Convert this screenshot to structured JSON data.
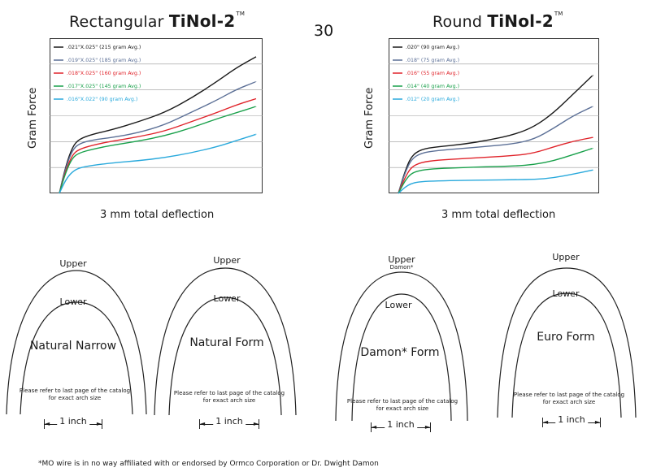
{
  "page_number": "30",
  "charts": [
    {
      "title_plain": "Rectangular",
      "title_brand": "TiNol-2",
      "title_tm": "TM",
      "ylabel": "Gram Force",
      "xlabel": "3 mm total deflection"
    },
    {
      "title_plain": "Round",
      "title_brand": "TiNol-2",
      "title_tm": "TM",
      "ylabel": "Gram Force",
      "xlabel": "3 mm total deflection"
    }
  ],
  "chart_data": [
    {
      "type": "line",
      "title": "Rectangular TiNol-2™",
      "ylabel": "Gram Force",
      "xlabel": "3 mm total deflection",
      "xlim": [
        0,
        3
      ],
      "grid": true,
      "legend_position": "top-left",
      "series": [
        {
          "name": ".021\"X.025\" (215 gram Avg.)",
          "color": "#1a1a1a",
          "x": [
            0,
            0.1,
            0.2,
            0.3,
            0.5,
            0.8,
            1.2,
            1.6,
            2.0,
            2.4,
            2.7,
            3.0
          ],
          "y": [
            0,
            0.9,
            1.5,
            1.75,
            1.9,
            2.05,
            2.3,
            2.6,
            3.05,
            3.6,
            4.05,
            4.4
          ]
        },
        {
          "name": ".019\"X.025\" (185 gram Avg.)",
          "color": "#5b6f96",
          "x": [
            0,
            0.1,
            0.2,
            0.3,
            0.5,
            0.8,
            1.2,
            1.6,
            2.0,
            2.4,
            2.7,
            3.0
          ],
          "y": [
            0,
            0.85,
            1.4,
            1.6,
            1.72,
            1.8,
            1.95,
            2.2,
            2.6,
            3.0,
            3.35,
            3.6
          ]
        },
        {
          "name": ".018\"X.025\" (160 gram Avg.)",
          "color": "#e0232a",
          "x": [
            0,
            0.1,
            0.2,
            0.3,
            0.5,
            0.8,
            1.2,
            1.6,
            2.0,
            2.4,
            2.7,
            3.0
          ],
          "y": [
            0,
            0.75,
            1.25,
            1.42,
            1.55,
            1.68,
            1.82,
            2.0,
            2.3,
            2.6,
            2.85,
            3.05
          ]
        },
        {
          "name": ".017\"X.025\" (145 gram Avg.)",
          "color": "#18a04a",
          "x": [
            0,
            0.1,
            0.2,
            0.3,
            0.5,
            0.8,
            1.2,
            1.6,
            2.0,
            2.4,
            2.7,
            3.0
          ],
          "y": [
            0,
            0.7,
            1.15,
            1.3,
            1.42,
            1.55,
            1.68,
            1.85,
            2.1,
            2.4,
            2.6,
            2.8
          ]
        },
        {
          "name": ".016\"X.022\" (90 gram Avg.)",
          "color": "#29a9dc",
          "x": [
            0,
            0.1,
            0.2,
            0.3,
            0.5,
            0.8,
            1.2,
            1.6,
            2.0,
            2.4,
            2.7,
            3.0
          ],
          "y": [
            0,
            0.45,
            0.7,
            0.82,
            0.9,
            0.98,
            1.05,
            1.15,
            1.3,
            1.5,
            1.7,
            1.9
          ]
        }
      ]
    },
    {
      "type": "line",
      "title": "Round TiNol-2™",
      "ylabel": "Gram Force",
      "xlabel": "3 mm total deflection",
      "xlim": [
        0,
        3
      ],
      "grid": true,
      "legend_position": "top-left",
      "series": [
        {
          "name": ".020\" (90 gram Avg.)",
          "color": "#1a1a1a",
          "x": [
            0,
            0.1,
            0.2,
            0.35,
            0.6,
            1.0,
            1.4,
            1.8,
            2.1,
            2.4,
            2.7,
            3.0
          ],
          "y": [
            0,
            0.7,
            1.2,
            1.42,
            1.5,
            1.58,
            1.72,
            1.9,
            2.15,
            2.6,
            3.2,
            3.8
          ]
        },
        {
          "name": ".018\" (75 gram Avg.)",
          "color": "#5b6f96",
          "x": [
            0,
            0.1,
            0.2,
            0.35,
            0.6,
            1.0,
            1.4,
            1.8,
            2.1,
            2.4,
            2.7,
            3.0
          ],
          "y": [
            0,
            0.65,
            1.1,
            1.3,
            1.38,
            1.45,
            1.52,
            1.6,
            1.75,
            2.1,
            2.5,
            2.8
          ]
        },
        {
          "name": ".016\" (55 gram Avg.)",
          "color": "#e0232a",
          "x": [
            0,
            0.1,
            0.2,
            0.35,
            0.6,
            1.0,
            1.4,
            1.8,
            2.1,
            2.4,
            2.7,
            3.0
          ],
          "y": [
            0,
            0.5,
            0.85,
            1.0,
            1.07,
            1.12,
            1.17,
            1.22,
            1.3,
            1.5,
            1.68,
            1.8
          ]
        },
        {
          "name": ".014\" (40 gram Avg.)",
          "color": "#18a04a",
          "x": [
            0,
            0.1,
            0.2,
            0.35,
            0.6,
            1.0,
            1.4,
            1.8,
            2.1,
            2.4,
            2.7,
            3.0
          ],
          "y": [
            0,
            0.4,
            0.65,
            0.75,
            0.8,
            0.83,
            0.86,
            0.88,
            0.93,
            1.05,
            1.25,
            1.45
          ]
        },
        {
          "name": ".012\" (20 gram Avg.)",
          "color": "#29a9dc",
          "x": [
            0,
            0.1,
            0.2,
            0.35,
            0.6,
            1.0,
            1.4,
            1.8,
            2.1,
            2.4,
            2.7,
            3.0
          ],
          "y": [
            0,
            0.2,
            0.32,
            0.38,
            0.4,
            0.42,
            0.43,
            0.44,
            0.45,
            0.5,
            0.62,
            0.75
          ]
        }
      ]
    }
  ],
  "arch_forms": [
    {
      "upper": "Upper",
      "lower": "Lower",
      "name": "Natural Narrow",
      "note": "Please refer to last page of the catalog for exact arch size",
      "inch": "1 inch"
    },
    {
      "upper": "Upper",
      "lower": "Lower",
      "name": "Natural Form",
      "note": "Please refer to last page of the catalog for exact arch size",
      "inch": "1 inch"
    },
    {
      "upper": "Upper",
      "upper_sub": "Damon*",
      "lower": "Lower",
      "name": "Damon* Form",
      "note": "Please refer to last page of the catalog for exact arch size",
      "inch": "1 inch"
    },
    {
      "upper": "Upper",
      "lower": "Lower",
      "name": "Euro Form",
      "note": "Please refer to last page of the catalog for exact arch size",
      "inch": "1 inch"
    }
  ],
  "footnote": "*MO wire is in no way affiliated with or endorsed by Ormco Corporation or Dr. Dwight Damon"
}
